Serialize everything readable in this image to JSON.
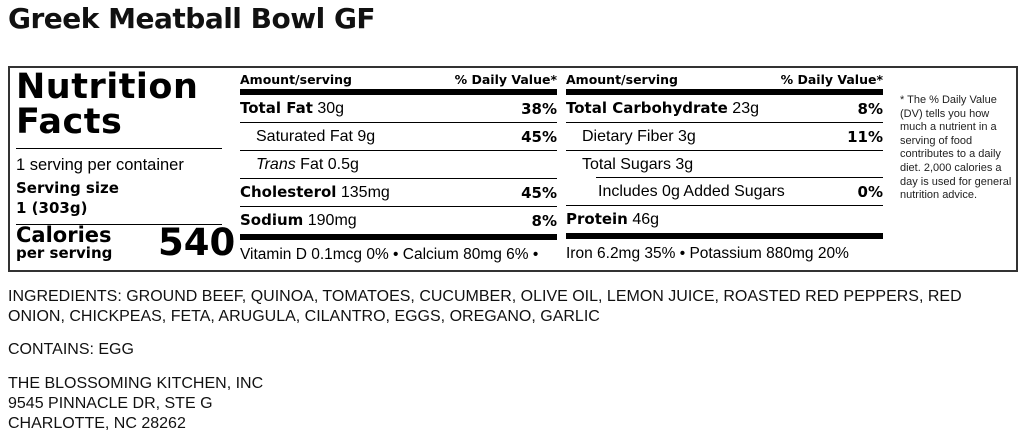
{
  "title": "Greek Meatball Bowl GF",
  "label": {
    "heading_line1": "Nutrition",
    "heading_line2": "Facts",
    "servings_per_container": "1 serving per container",
    "serving_size_label": "Serving size",
    "serving_size_value": "1 (303g)",
    "calories_label": "Calories",
    "calories_sub": "per serving",
    "calories_value": "540",
    "header_amount": "Amount/serving",
    "header_dv": "% Daily Value*",
    "left_rows": [
      {
        "name": "Total Fat",
        "amount": " 30g",
        "dv": "38%"
      },
      {
        "name": "Saturated Fat",
        "amount": " 9g",
        "dv": "45%"
      },
      {
        "name": "Trans",
        "amount": " Fat 0.5g",
        "dv": ""
      },
      {
        "name": "Cholesterol",
        "amount": " 135mg",
        "dv": "45%"
      },
      {
        "name": "Sodium",
        "amount": " 190mg",
        "dv": "8%"
      }
    ],
    "right_rows": [
      {
        "name": "Total Carbohydrate",
        "amount": " 23g",
        "dv": "8%"
      },
      {
        "name": "Dietary Fiber",
        "amount": " 3g",
        "dv": "11%"
      },
      {
        "name": "Total Sugars",
        "amount": " 3g",
        "dv": ""
      },
      {
        "name": "Includes 0g Added Sugars",
        "amount": "",
        "dv": "0%"
      },
      {
        "name": "Protein",
        "amount": " 46g",
        "dv": ""
      }
    ],
    "vitamins_left": "Vitamin D 0.1mcg 0% • Calcium 80mg 6% •",
    "vitamins_right": "Iron 6.2mg 35% • Potassium 880mg 20%",
    "footnote": "* The % Daily Value (DV) tells you how much a nutrient in a serving of food contributes to a daily diet. 2,000 calories a day is used for general nutrition advice."
  },
  "ingredients": "INGREDIENTS: GROUND BEEF, QUINOA, TOMATOES, CUCUMBER, OLIVE OIL, LEMON JUICE, ROASTED RED PEPPERS, RED ONION, CHICKPEAS, FETA, ARUGULA, CILANTRO, EGGS, OREGANO, GARLIC",
  "contains": "CONTAINS: EGG",
  "address": [
    "THE BLOSSOMING KITCHEN, INC",
    "9545 PINNACLE DR, STE G",
    "CHARLOTTE, NC 28262"
  ]
}
